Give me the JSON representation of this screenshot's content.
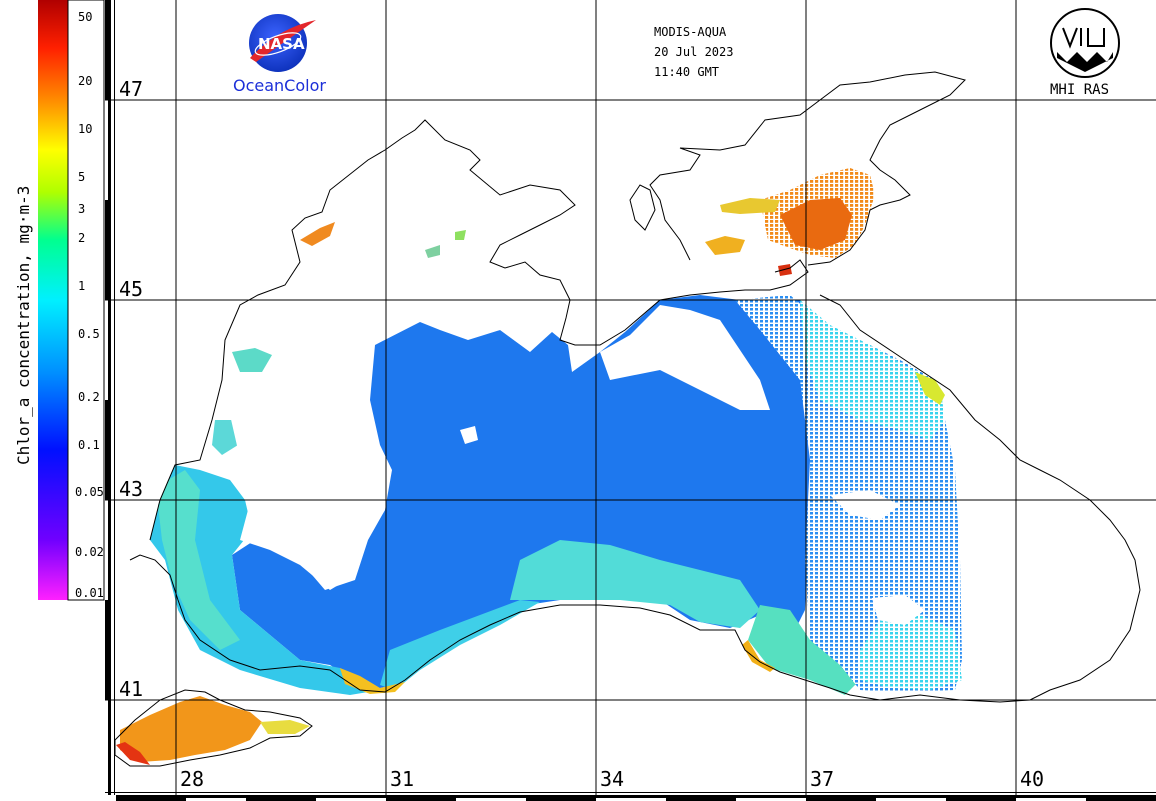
{
  "header": {
    "satellite": "MODIS-AQUA",
    "date": "20 Jul 2023",
    "time": "11:40 GMT"
  },
  "logos": {
    "nasa_word": "NASA",
    "nasa_caption": "OceanColor",
    "mhi_caption": "MHI RAS"
  },
  "colorbar": {
    "label": "Chlor_a concentration, mg·m-3",
    "ticks": [
      "50",
      "20",
      "10",
      "5",
      "3",
      "2",
      "1",
      "0.5",
      "0.2",
      "0.1",
      "0.05",
      "0.02",
      "0.01"
    ],
    "colors": [
      "#ff20ff",
      "#7000ff",
      "#0010ff",
      "#0090ff",
      "#00f0ff",
      "#00ff90",
      "#b0ff00",
      "#ffff00",
      "#ff9000",
      "#ff2000",
      "#b00000"
    ]
  },
  "map": {
    "latitudes": [
      "47",
      "45",
      "43",
      "41"
    ],
    "longitudes": [
      "28",
      "31",
      "34",
      "37",
      "40"
    ],
    "land_color": "#ffffff",
    "coast_color": "#000000",
    "grid_color": "#000000",
    "water_color_main": "#1e78f0",
    "water_color_coastal": "#30d8e8",
    "water_color_high": "#ff9a20"
  }
}
